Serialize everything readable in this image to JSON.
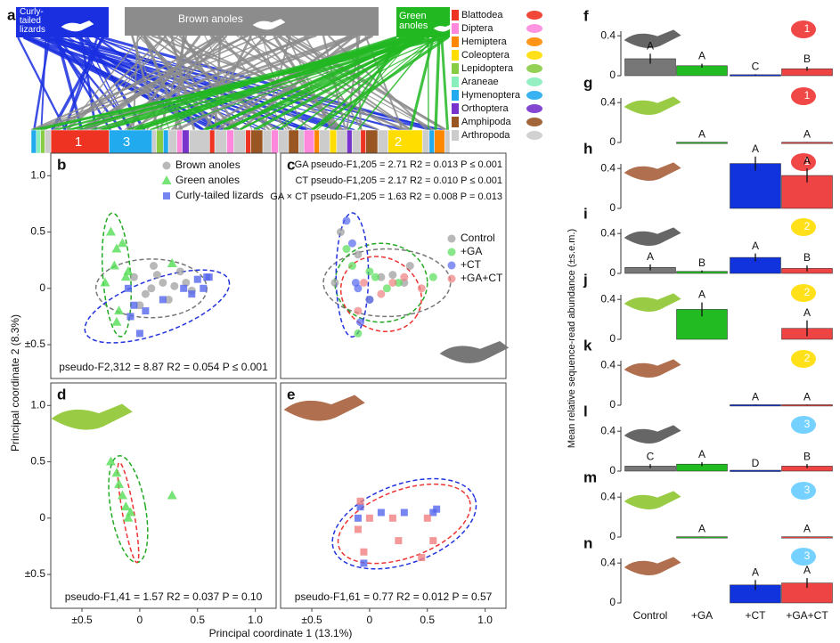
{
  "panel_a": {
    "panel": "a",
    "groups": [
      {
        "name": "Curly-tailed lizards",
        "color": "#1a2fe0"
      },
      {
        "name": "Brown anoles",
        "color": "#8c8c8c"
      },
      {
        "name": "Green anoles",
        "color": "#22b822"
      }
    ],
    "orders": [
      {
        "name": "Blattodea",
        "color": "#ee3322"
      },
      {
        "name": "Diptera",
        "color": "#ff88dd"
      },
      {
        "name": "Hemiptera",
        "color": "#ff8800"
      },
      {
        "name": "Coleoptera",
        "color": "#ffdd00"
      },
      {
        "name": "Lepidoptera",
        "color": "#88cc44"
      },
      {
        "name": "Araneae",
        "color": "#88eebb"
      },
      {
        "name": "Hymenoptera",
        "color": "#22aaee"
      },
      {
        "name": "Orthoptera",
        "color": "#7733cc"
      },
      {
        "name": "Amphipoda",
        "color": "#995522"
      },
      {
        "name": "Arthropoda",
        "color": "#cccccc"
      }
    ],
    "segment_labels": [
      "1",
      "3",
      "2"
    ]
  },
  "axis_labels": {
    "pc1": "Principal coordinate 1 (13.1%)",
    "pc2": "Principal coordinate 2 (8.3%)",
    "abundance": "Mean relative sequence-read abundance (±s.e.m.)"
  },
  "chart_data": [
    {
      "type": "scatter",
      "panel": "b",
      "xlim": [
        -0.77,
        1.18
      ],
      "ylim": [
        -0.8,
        1.2
      ],
      "yticks": [
        {
          "value": -0.5,
          "label": "±0.5"
        },
        0,
        0.5,
        {
          "value": 1,
          "label": "1.0"
        }
      ],
      "annotations": [
        "pseudo-F2,312 = 8.87 R2 = 0.054 P ≤ 0.001"
      ],
      "series": [
        {
          "name": "Brown anoles",
          "color": "#9a9a9a",
          "marker": "circle",
          "x": [
            0.1,
            0.2,
            0.3,
            0.05,
            -0.05,
            0.15,
            0.25,
            0.4,
            0.35,
            0.0,
            0.12,
            0.45
          ],
          "values": [
            0.0,
            0.05,
            0.02,
            -0.05,
            0.1,
            0.12,
            -0.1,
            0.05,
            0.15,
            -0.15,
            0.2,
            -0.02
          ]
        },
        {
          "name": "Green anoles",
          "color": "#55dd55",
          "marker": "triangle",
          "x": [
            -0.25,
            -0.2,
            -0.15,
            -0.22,
            -0.1,
            -0.3,
            0.28,
            -0.18,
            -0.12,
            -0.2
          ],
          "values": [
            0.5,
            0.35,
            0.4,
            0.2,
            0.15,
            0.05,
            0.22,
            -0.2,
            0.1,
            -0.3
          ]
        },
        {
          "name": "Curly-tailed lizards",
          "color": "#5566ee",
          "marker": "square",
          "x": [
            -0.1,
            -0.05,
            0.0,
            0.5,
            0.58,
            0.6,
            0.45,
            0.55,
            -0.08,
            0.05,
            0.2,
            0.38
          ],
          "values": [
            0.0,
            -0.15,
            -0.4,
            0.08,
            0.1,
            0.1,
            -0.05,
            0.0,
            -0.25,
            -0.2,
            -0.1,
            0.0
          ]
        }
      ]
    },
    {
      "type": "scatter",
      "panel": "c",
      "xlim": [
        -0.77,
        1.18
      ],
      "ylim": [
        -0.8,
        1.2
      ],
      "annotations": [
        "GA pseudo-F1,205 = 2.71 R2 = 0.013 P ≤ 0.001",
        "CT pseudo-F1,205 = 2.17 R2 = 0.010 P ≤ 0.001",
        "GA × CT pseudo-F1,205 = 1.63 R2 = 0.008 P = 0.013"
      ],
      "series": [
        {
          "name": "Control",
          "color": "#9a9a9a",
          "marker": "circle",
          "x": [
            -0.25,
            -0.1,
            0.1,
            0.3,
            0.0,
            0.2,
            -0.3,
            0.35
          ],
          "values": [
            0.5,
            0.3,
            0.1,
            0.05,
            -0.1,
            0.12,
            0.05,
            0.2
          ]
        },
        {
          "name": "+GA",
          "color": "#55dd55",
          "marker": "circle",
          "x": [
            -0.2,
            -0.15,
            0.0,
            0.05,
            0.25,
            0.55,
            -0.1,
            0.15
          ],
          "values": [
            0.35,
            0.2,
            0.15,
            0.1,
            0.05,
            0.1,
            -0.4,
            0.0
          ]
        },
        {
          "name": "+CT",
          "color": "#5566ee",
          "marker": "circle",
          "x": [
            -0.2,
            -0.15,
            -0.1,
            -0.12,
            0.0,
            -0.08
          ],
          "values": [
            0.6,
            0.4,
            0.0,
            0.05,
            -0.1,
            -0.3
          ]
        },
        {
          "name": "+GA+CT",
          "color": "#f08080",
          "marker": "circle",
          "x": [
            -0.05,
            0.2,
            0.3,
            0.45,
            0.1,
            -0.1
          ],
          "values": [
            0.05,
            0.05,
            0.1,
            0.0,
            -0.05,
            -0.2
          ]
        }
      ]
    },
    {
      "type": "scatter",
      "panel": "d",
      "xlim": [
        -0.77,
        1.18
      ],
      "ylim": [
        -0.8,
        1.2
      ],
      "xticks": [
        {
          "value": -0.5,
          "label": "±0.5"
        },
        0,
        0.5,
        {
          "value": 1,
          "label": "1.0"
        }
      ],
      "yticks": [
        {
          "value": -0.5,
          "label": "±0.5"
        },
        0,
        0.5,
        {
          "value": 1,
          "label": "1.0"
        }
      ],
      "annotations": [
        "pseudo-F1,41 = 1.57 R2 = 0.037 P = 0.10"
      ],
      "series": [
        {
          "color": "#55dd55",
          "marker": "triangle",
          "x": [
            -0.25,
            -0.2,
            -0.18,
            -0.15,
            -0.12,
            -0.1,
            -0.08,
            0.28
          ],
          "values": [
            0.5,
            0.4,
            0.3,
            0.2,
            0.1,
            0.0,
            0.05,
            0.2
          ]
        }
      ]
    },
    {
      "type": "scatter",
      "panel": "e",
      "xlim": [
        -0.77,
        1.18
      ],
      "ylim": [
        -0.8,
        1.2
      ],
      "xticks": [
        {
          "value": -0.5,
          "label": "±0.5"
        },
        0,
        0.5,
        {
          "value": 1,
          "label": "1.0"
        }
      ],
      "annotations": [
        "pseudo-F1,61 = 0.77 R2 = 0.012 P = 0.57"
      ],
      "series": [
        {
          "color": "#5566ee",
          "marker": "square",
          "x": [
            -0.1,
            -0.05,
            0.3,
            0.55,
            0.58,
            0.1,
            -0.08
          ],
          "values": [
            0.0,
            -0.4,
            0.05,
            0.05,
            0.08,
            0.05,
            0.1
          ]
        },
        {
          "color": "#f08080",
          "marker": "square",
          "x": [
            -0.1,
            -0.05,
            0.0,
            0.2,
            0.25,
            0.5,
            0.55,
            0.45,
            -0.08
          ],
          "values": [
            -0.1,
            -0.3,
            0.0,
            0.0,
            -0.2,
            0.0,
            -0.2,
            -0.35,
            0.15
          ]
        }
      ]
    },
    {
      "type": "bar",
      "panel": "f",
      "icon_label": "1",
      "ylim": [
        0,
        0.5
      ],
      "yticks": [
        0,
        0.4
      ],
      "colors": [
        "#777777",
        "#22bb22",
        "#1133dd",
        "#ee4444"
      ],
      "values": [
        0.17,
        0.1,
        0.01,
        0.07
      ],
      "errors": [
        0.05,
        0.02,
        0.005,
        0.02
      ],
      "letters": [
        "A",
        "A",
        "C",
        "B"
      ]
    },
    {
      "type": "bar",
      "panel": "g",
      "icon_label": "1",
      "ylim": [
        0,
        0.5
      ],
      "yticks": [
        0,
        0.4
      ],
      "colors": [
        "#777777",
        "#22bb22",
        "#1133dd",
        "#ee4444"
      ],
      "values": [
        null,
        0.003,
        null,
        0.003
      ],
      "errors": [
        null,
        0.002,
        null,
        0.002
      ],
      "letters": [
        null,
        "A",
        null,
        "A"
      ]
    },
    {
      "type": "bar",
      "panel": "h",
      "icon_label": "1",
      "ylim": [
        0,
        0.5
      ],
      "yticks": [
        0,
        0.4
      ],
      "colors": [
        "#777777",
        "#22bb22",
        "#1133dd",
        "#ee4444"
      ],
      "values": [
        null,
        null,
        0.45,
        0.33
      ],
      "errors": [
        null,
        null,
        0.07,
        0.07
      ],
      "letters": [
        null,
        null,
        "A",
        "A"
      ]
    },
    {
      "type": "bar",
      "panel": "i",
      "icon_label": "2",
      "ylim": [
        0,
        0.5
      ],
      "yticks": [
        0,
        0.4
      ],
      "colors": [
        "#777777",
        "#22bb22",
        "#1133dd",
        "#ee4444"
      ],
      "values": [
        0.06,
        0.02,
        0.16,
        0.05
      ],
      "errors": [
        0.03,
        0.01,
        0.04,
        0.03
      ],
      "letters": [
        "A",
        "B",
        "A",
        "B"
      ]
    },
    {
      "type": "bar",
      "panel": "j",
      "icon_label": "2",
      "ylim": [
        0,
        0.5
      ],
      "yticks": [
        0,
        0.4
      ],
      "colors": [
        "#777777",
        "#22bb22",
        "#1133dd",
        "#ee4444"
      ],
      "values": [
        null,
        0.3,
        null,
        0.11
      ],
      "errors": [
        null,
        0.07,
        null,
        0.08
      ],
      "letters": [
        null,
        "A",
        null,
        "A"
      ]
    },
    {
      "type": "bar",
      "panel": "k",
      "icon_label": "2",
      "ylim": [
        0,
        0.5
      ],
      "yticks": [
        0,
        0.4
      ],
      "colors": [
        "#777777",
        "#22bb22",
        "#1133dd",
        "#ee4444"
      ],
      "values": [
        null,
        null,
        0.005,
        0.005
      ],
      "errors": [
        null,
        null,
        0.002,
        0.002
      ],
      "letters": [
        null,
        null,
        "A",
        "A"
      ]
    },
    {
      "type": "bar",
      "panel": "l",
      "icon_label": "3",
      "ylim": [
        0,
        0.5
      ],
      "yticks": [
        0,
        0.4
      ],
      "colors": [
        "#777777",
        "#22bb22",
        "#1133dd",
        "#ee4444"
      ],
      "values": [
        0.05,
        0.07,
        0.0,
        0.05
      ],
      "errors": [
        0.02,
        0.02,
        0.0,
        0.02
      ],
      "letters": [
        "C",
        "A",
        "D",
        "B"
      ]
    },
    {
      "type": "bar",
      "panel": "m",
      "icon_label": "3",
      "ylim": [
        0,
        0.5
      ],
      "yticks": [
        0,
        0.4
      ],
      "colors": [
        "#777777",
        "#22bb22",
        "#1133dd",
        "#ee4444"
      ],
      "values": [
        null,
        0.003,
        null,
        0.003
      ],
      "errors": [
        null,
        0.002,
        null,
        0.002
      ],
      "letters": [
        null,
        "A",
        null,
        "A"
      ]
    },
    {
      "type": "bar",
      "panel": "n",
      "icon_label": "3",
      "ylim": [
        0,
        0.5
      ],
      "yticks": [
        0,
        0.4
      ],
      "colors": [
        "#777777",
        "#22bb22",
        "#1133dd",
        "#ee4444"
      ],
      "values": [
        null,
        null,
        0.18,
        0.2
      ],
      "errors": [
        null,
        null,
        0.05,
        0.05
      ],
      "letters": [
        null,
        null,
        "A",
        "A"
      ],
      "categories": [
        "Control",
        "+GA",
        "+CT",
        "+GA+CT"
      ]
    }
  ]
}
